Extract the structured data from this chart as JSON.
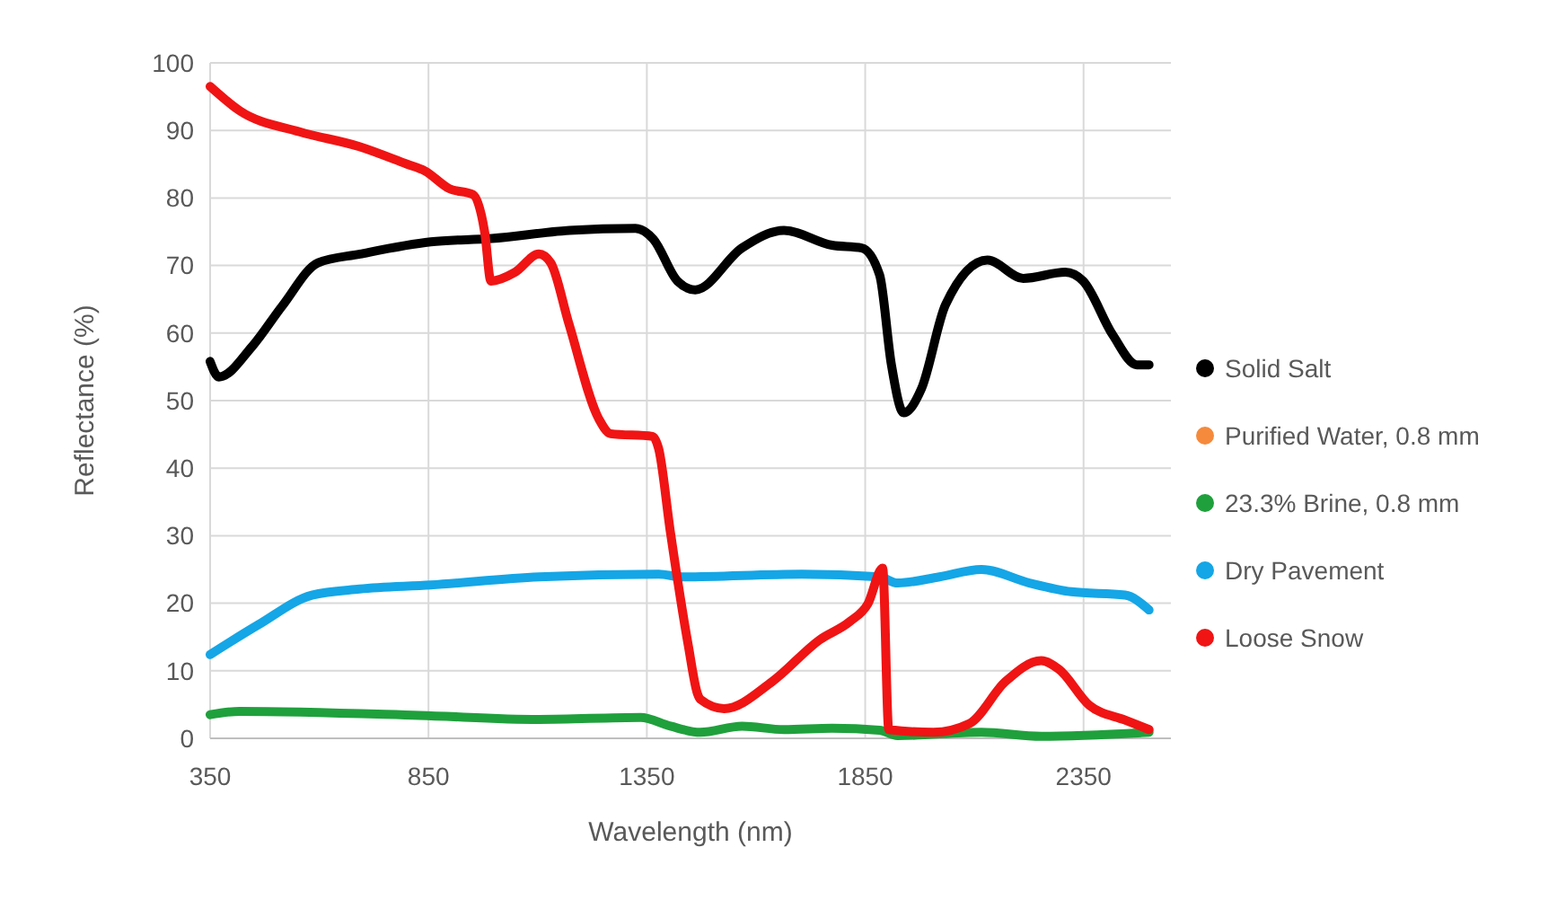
{
  "chart_data": {
    "type": "line",
    "xlabel": "Wavelength (nm)",
    "ylabel": "Reflectance (%)",
    "xlim": [
      350,
      2550
    ],
    "xticks": [
      350,
      850,
      1350,
      1850,
      2350
    ],
    "ylim": [
      0,
      100
    ],
    "yticks": [
      0,
      10,
      20,
      30,
      40,
      50,
      60,
      70,
      80,
      90,
      100
    ],
    "grid": true,
    "legend": "right",
    "series": [
      {
        "name": "Solid Salt",
        "color": "#000000",
        "x": [
          350,
          370,
          446,
          515,
          597,
          693,
          855,
          995,
          1173,
          1324,
          1365,
          1420,
          1461,
          1568,
          1664,
          1774,
          1842,
          1883,
          1910,
          1938,
          1979,
          2034,
          2130,
          2212,
          2308,
          2349,
          2417,
          2472,
          2500
        ],
        "values": [
          55.8,
          53.5,
          58,
          64,
          70.4,
          71.7,
          73.5,
          74,
          75.2,
          75.5,
          73.9,
          67.7,
          66.4,
          72.6,
          75.2,
          73,
          72.6,
          68.6,
          55.3,
          48.2,
          51.8,
          64.2,
          70.8,
          68.1,
          69,
          67.7,
          59.7,
          55.3,
          55.3
        ]
      },
      {
        "name": "Purified Water, 0.8 mm",
        "color": "#f58a3c"
      },
      {
        "name": "23.3% Brine, 0.8 mm",
        "color": "#1fa03c",
        "x": [
          350,
          418,
          829,
          1103,
          1336,
          1404,
          1472,
          1568,
          1664,
          1774,
          1883,
          1924,
          2116,
          2253,
          2500
        ],
        "values": [
          3.5,
          4,
          3.4,
          2.8,
          3.1,
          1.8,
          0.9,
          1.8,
          1.3,
          1.5,
          1.2,
          0.4,
          0.9,
          0.3,
          0.9
        ]
      },
      {
        "name": "Dry Pavement",
        "color": "#14a6e6",
        "x": [
          350,
          460,
          583,
          692,
          855,
          1103,
          1377,
          1431,
          1705,
          1883,
          1924,
          2020,
          2116,
          2226,
          2322,
          2445,
          2500
        ],
        "values": [
          12.4,
          16.8,
          21.2,
          22.1,
          22.7,
          23.9,
          24.3,
          23.9,
          24.3,
          23.9,
          23,
          23.9,
          25,
          23,
          21.7,
          21.2,
          19
        ]
      },
      {
        "name": "Loose Snow",
        "color": "#f01414",
        "x": [
          350,
          418,
          555,
          692,
          801,
          842,
          897,
          952,
          979,
          993,
          1048,
          1103,
          1130,
          1171,
          1240,
          1267,
          1363,
          1377,
          1404,
          1445,
          1466,
          1472,
          1527,
          1637,
          1746,
          1815,
          1856,
          1890,
          1904,
          2006,
          2089,
          2171,
          2253,
          2294,
          2363,
          2445,
          2500
        ],
        "values": [
          96.5,
          92.9,
          89.8,
          87.6,
          85,
          84,
          81.4,
          80.5,
          74.8,
          67.7,
          69,
          71.7,
          70.4,
          61.5,
          47.3,
          45.1,
          44.7,
          42.9,
          30.5,
          13.7,
          6.6,
          5.8,
          4.4,
          8.4,
          14.6,
          17.3,
          19.9,
          25.2,
          1.3,
          0.9,
          2.2,
          8.4,
          11.5,
          10.2,
          4.9,
          2.7,
          1.3
        ]
      }
    ]
  }
}
